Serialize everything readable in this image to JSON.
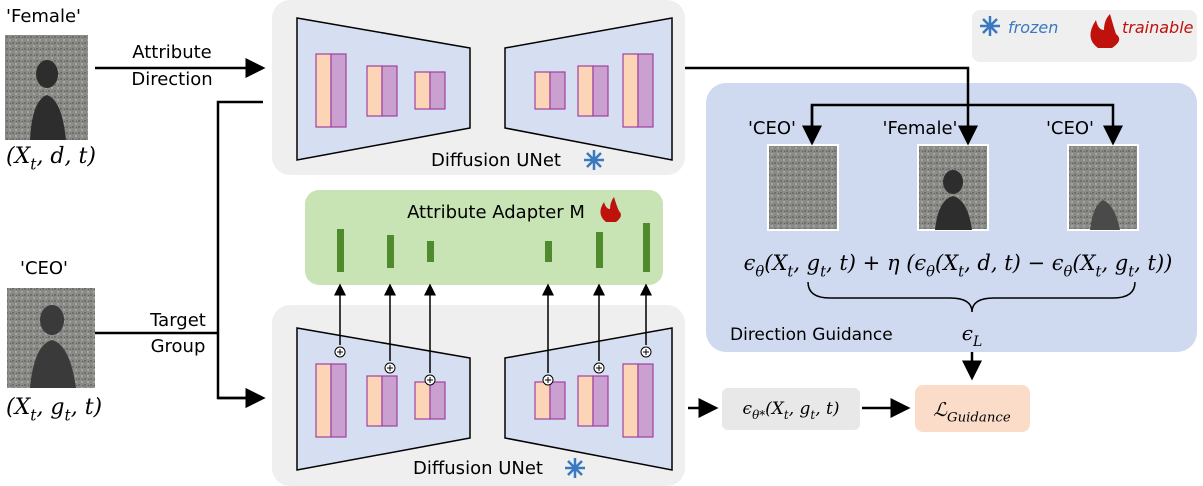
{
  "left": {
    "female_label": "'Female'",
    "attr_line1": "Attribute",
    "attr_line2": "Direction",
    "ceo_label": "'CEO'",
    "target_line1": "Target",
    "target_line2": "Group"
  },
  "unet_top": "Diffusion UNet",
  "unet_bottom": "Diffusion UNet",
  "adapter": "Attribute Adapter M",
  "legend": {
    "frozen": "frozen",
    "trainable": "trainable"
  },
  "guidance": {
    "labels": [
      "'CEO'",
      "'Female'",
      "'CEO'"
    ],
    "title": "Direction Guidance"
  },
  "math": {
    "input_d": [
      {
        "t": "(X"
      },
      {
        "s": "t"
      },
      {
        "t": ", d, t)"
      }
    ],
    "input_g": [
      {
        "t": "(X"
      },
      {
        "s": "t"
      },
      {
        "t": ", g"
      },
      {
        "s": "t"
      },
      {
        "t": ", t)"
      }
    ],
    "formula": [
      {
        "t": "ϵ"
      },
      {
        "s": "θ"
      },
      {
        "t": "(X"
      },
      {
        "s": "t"
      },
      {
        "t": ", g"
      },
      {
        "s": "t"
      },
      {
        "t": ", t) + η (ϵ"
      },
      {
        "s": "θ"
      },
      {
        "t": "(X"
      },
      {
        "s": "t"
      },
      {
        "t": ", d, t) − ϵ"
      },
      {
        "s": "θ"
      },
      {
        "t": "(X"
      },
      {
        "s": "t"
      },
      {
        "t": ", g"
      },
      {
        "s": "t"
      },
      {
        "t": ", t))"
      }
    ],
    "eps_L": [
      {
        "t": "ϵ"
      },
      {
        "s": "L"
      }
    ],
    "eps_star": [
      {
        "t": "ϵ"
      },
      {
        "s": "θ*"
      },
      {
        "t": "(X"
      },
      {
        "s": "t"
      },
      {
        "t": ", g"
      },
      {
        "s": "t"
      },
      {
        "t": ", t)"
      }
    ],
    "loss": [
      {
        "t": "ℒ"
      },
      {
        "s": "Guidance"
      }
    ]
  }
}
